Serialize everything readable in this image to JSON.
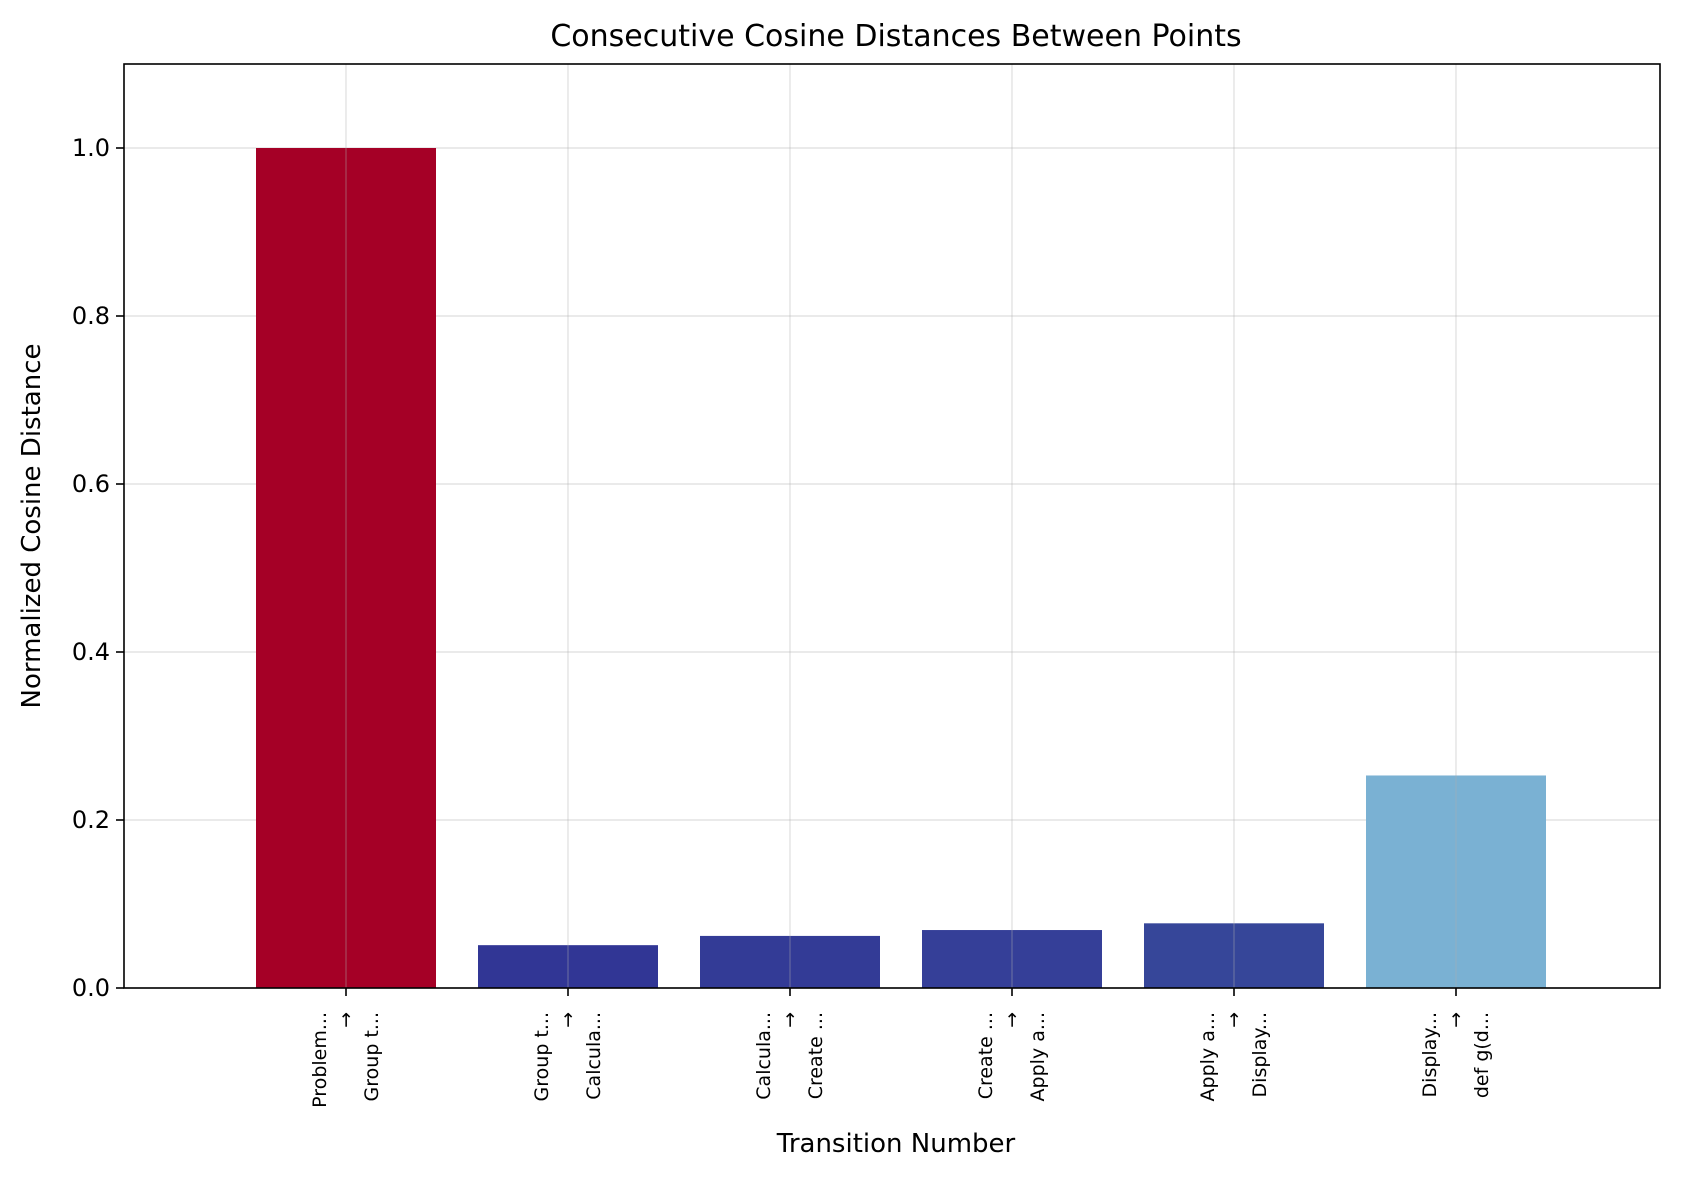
{
  "chart_data": {
    "type": "bar",
    "title": "Consecutive Cosine Distances Between Points",
    "xlabel": "Transition Number",
    "ylabel": "Normalized Cosine Distance",
    "ylim": [
      0,
      1.1
    ],
    "yticks": [
      "0.0",
      "0.2",
      "0.4",
      "0.6",
      "0.8",
      "1.0"
    ],
    "ytick_values": [
      0,
      0.2,
      0.4,
      0.6,
      0.8,
      1.0
    ],
    "grid": true,
    "categories": [
      {
        "from": "Problem...",
        "arrow": "→",
        "to": "Group t..."
      },
      {
        "from": "Group t...",
        "arrow": "→",
        "to": "Calcula..."
      },
      {
        "from": "Calcula...",
        "arrow": "→",
        "to": "Create ..."
      },
      {
        "from": "Create ...",
        "arrow": "→",
        "to": "Apply a..."
      },
      {
        "from": "Apply a...",
        "arrow": "→",
        "to": "Display..."
      },
      {
        "from": "Display...",
        "arrow": "→",
        "to": "def g(d..."
      }
    ],
    "values": [
      1.0,
      0.051,
      0.062,
      0.069,
      0.077,
      0.253
    ],
    "colors": [
      "#a50026",
      "#313695",
      "#333b96",
      "#353f98",
      "#364699",
      "#7ab1d3"
    ]
  }
}
